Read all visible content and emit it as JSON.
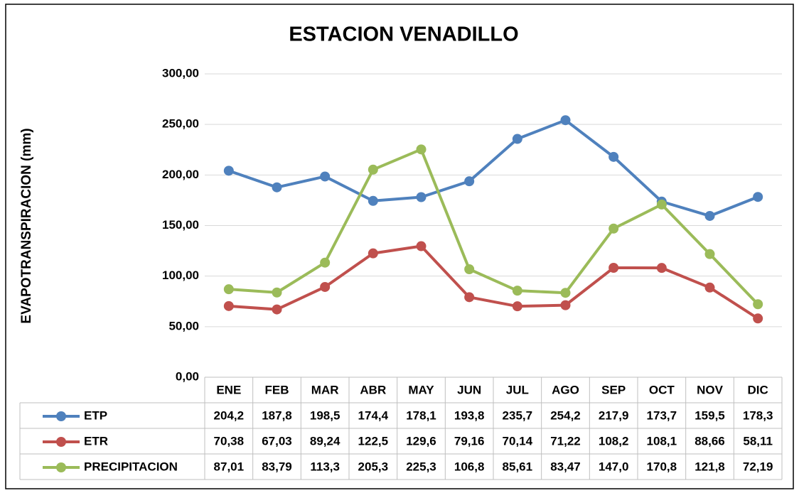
{
  "chart_data": {
    "type": "line",
    "title": "ESTACION VENADILLO",
    "y_label": "EVAPOTRANSPIRACION (mm)",
    "categories": [
      "ENE",
      "FEB",
      "MAR",
      "ABR",
      "MAY",
      "JUN",
      "JUL",
      "AGO",
      "SEP",
      "OCT",
      "NOV",
      "DIC"
    ],
    "series": [
      {
        "name": "ETP",
        "color": "#4f81bd",
        "values": [
          204.2,
          187.8,
          198.5,
          174.4,
          178.1,
          193.8,
          235.7,
          254.2,
          217.9,
          173.7,
          159.5,
          178.3
        ],
        "value_labels": [
          "204,2",
          "187,8",
          "198,5",
          "174,4",
          "178,1",
          "193,8",
          "235,7",
          "254,2",
          "217,9",
          "173,7",
          "159,5",
          "178,3"
        ]
      },
      {
        "name": "ETR",
        "color": "#c0504d",
        "values": [
          70.38,
          67.03,
          89.24,
          122.5,
          129.6,
          79.16,
          70.14,
          71.22,
          108.2,
          108.1,
          88.66,
          58.11
        ],
        "value_labels": [
          "70,38",
          "67,03",
          "89,24",
          "122,5",
          "129,6",
          "79,16",
          "70,14",
          "71,22",
          "108,2",
          "108,1",
          "88,66",
          "58,11"
        ]
      },
      {
        "name": "PRECIPITACION",
        "color": "#9bbb59",
        "values": [
          87.01,
          83.79,
          113.3,
          205.3,
          225.3,
          106.8,
          85.61,
          83.47,
          147.0,
          170.8,
          121.8,
          72.19
        ],
        "value_labels": [
          "87,01",
          "83,79",
          "113,3",
          "205,3",
          "225,3",
          "106,8",
          "85,61",
          "83,47",
          "147,0",
          "170,8",
          "121,8",
          "72,19"
        ]
      }
    ],
    "ylim": [
      0,
      300
    ],
    "yticks": [
      {
        "value": 0,
        "label": "0,00"
      },
      {
        "value": 50,
        "label": "50,00"
      },
      {
        "value": 100,
        "label": "100,00"
      },
      {
        "value": 150,
        "label": "150,00"
      },
      {
        "value": 200,
        "label": "200,00"
      },
      {
        "value": 250,
        "label": "250,00"
      },
      {
        "value": 300,
        "label": "300,00"
      }
    ],
    "grid": true
  }
}
